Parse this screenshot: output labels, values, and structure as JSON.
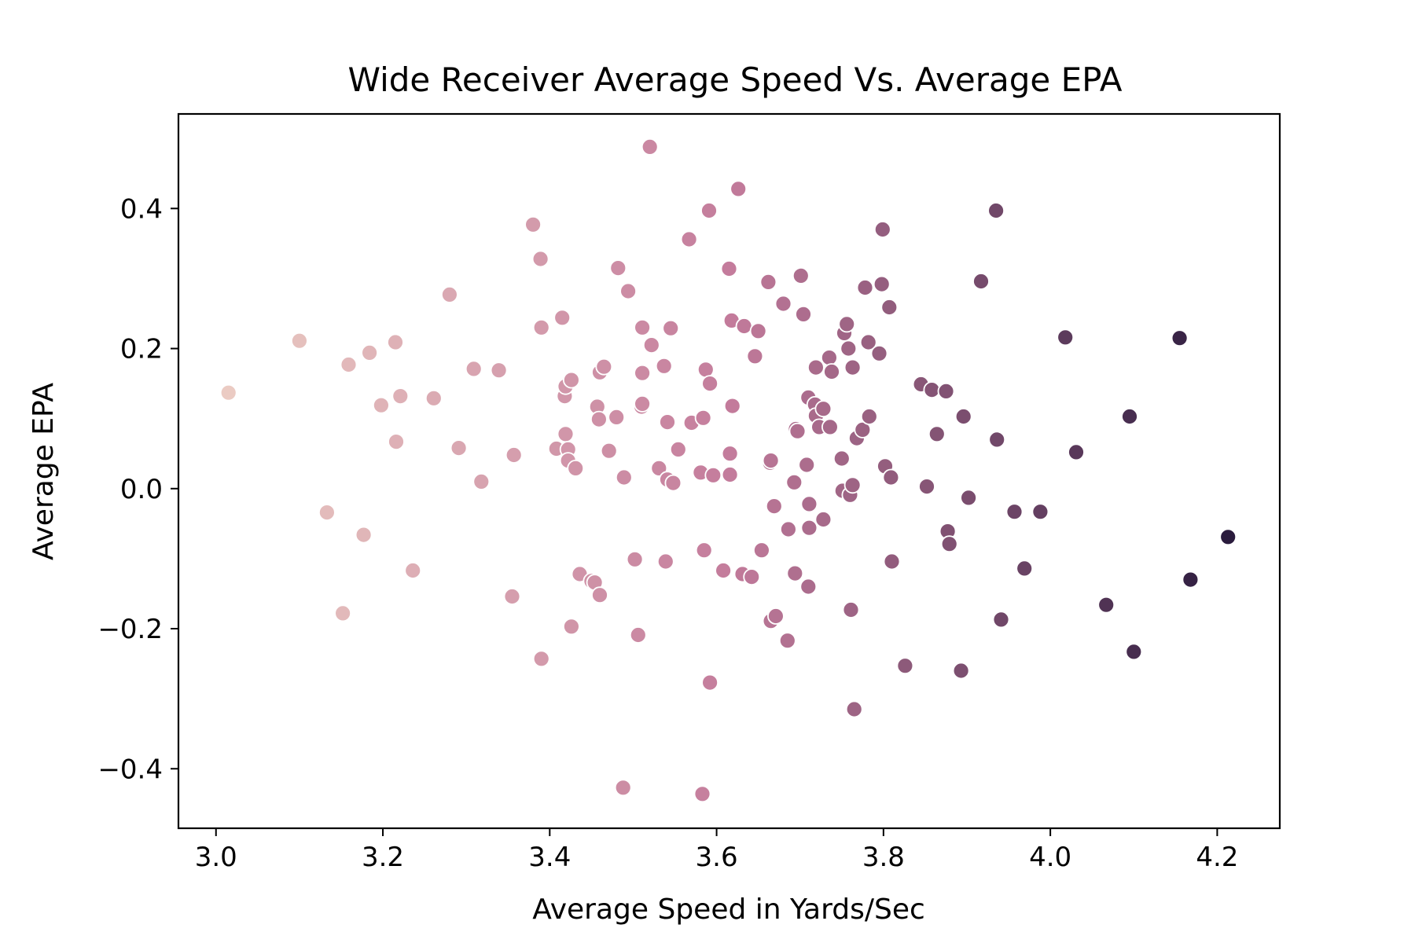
{
  "chart_data": {
    "type": "scatter",
    "title": "Wide Receiver Average Speed Vs. Average EPA",
    "xlabel": "Average Speed in Yards/Sec",
    "ylabel": "Average EPA",
    "xlim": [
      2.955,
      4.275
    ],
    "ylim": [
      -0.485,
      0.535
    ],
    "xticks": [
      3.0,
      3.2,
      3.4,
      3.6,
      3.8,
      4.0,
      4.2
    ],
    "xtick_labels": [
      "3.0",
      "3.2",
      "3.4",
      "3.6",
      "3.8",
      "4.0",
      "4.2"
    ],
    "yticks": [
      -0.4,
      -0.2,
      0.0,
      0.2,
      0.4
    ],
    "ytick_labels": [
      "−0.4",
      "−0.2",
      "0.0",
      "0.2",
      "0.4"
    ],
    "grid": false,
    "legend": "none",
    "hue": "x",
    "color_scale": [
      "#ebcbc3",
      "#2a1b3d"
    ],
    "points": [
      [
        3.015,
        0.137
      ],
      [
        3.1,
        0.211
      ],
      [
        3.133,
        -0.034
      ],
      [
        3.152,
        -0.178
      ],
      [
        3.159,
        0.177
      ],
      [
        3.177,
        -0.066
      ],
      [
        3.184,
        0.194
      ],
      [
        3.198,
        0.119
      ],
      [
        3.215,
        0.209
      ],
      [
        3.216,
        0.067
      ],
      [
        3.221,
        0.132
      ],
      [
        3.236,
        -0.117
      ],
      [
        3.261,
        0.129
      ],
      [
        3.28,
        0.277
      ],
      [
        3.291,
        0.058
      ],
      [
        3.309,
        0.171
      ],
      [
        3.318,
        0.01
      ],
      [
        3.339,
        0.169
      ],
      [
        3.355,
        -0.154
      ],
      [
        3.357,
        0.048
      ],
      [
        3.38,
        0.377
      ],
      [
        3.389,
        0.328
      ],
      [
        3.39,
        0.23
      ],
      [
        3.39,
        -0.243
      ],
      [
        3.408,
        0.057
      ],
      [
        3.415,
        0.244
      ],
      [
        3.418,
        0.132
      ],
      [
        3.419,
        0.146
      ],
      [
        3.419,
        0.078
      ],
      [
        3.422,
        0.056
      ],
      [
        3.422,
        0.04
      ],
      [
        3.426,
        0.155
      ],
      [
        3.426,
        -0.197
      ],
      [
        3.431,
        0.029
      ],
      [
        3.436,
        -0.122
      ],
      [
        3.45,
        -0.132
      ],
      [
        3.454,
        -0.134
      ],
      [
        3.457,
        0.117
      ],
      [
        3.459,
        0.099
      ],
      [
        3.46,
        0.166
      ],
      [
        3.46,
        -0.152
      ],
      [
        3.465,
        0.174
      ],
      [
        3.471,
        0.054
      ],
      [
        3.48,
        0.102
      ],
      [
        3.482,
        0.315
      ],
      [
        3.488,
        -0.427
      ],
      [
        3.489,
        0.016
      ],
      [
        3.494,
        0.282
      ],
      [
        3.502,
        -0.101
      ],
      [
        3.506,
        -0.209
      ],
      [
        3.51,
        0.117
      ],
      [
        3.511,
        0.23
      ],
      [
        3.511,
        0.165
      ],
      [
        3.511,
        0.121
      ],
      [
        3.52,
        0.488
      ],
      [
        3.522,
        0.205
      ],
      [
        3.531,
        0.029
      ],
      [
        3.537,
        0.175
      ],
      [
        3.539,
        -0.104
      ],
      [
        3.541,
        0.095
      ],
      [
        3.541,
        0.013
      ],
      [
        3.545,
        0.229
      ],
      [
        3.548,
        0.008
      ],
      [
        3.554,
        0.056
      ],
      [
        3.567,
        0.356
      ],
      [
        3.57,
        0.094
      ],
      [
        3.581,
        0.023
      ],
      [
        3.584,
        0.101
      ],
      [
        3.585,
        -0.088
      ],
      [
        3.587,
        0.17
      ],
      [
        3.583,
        -0.436
      ],
      [
        3.591,
        0.397
      ],
      [
        3.592,
        0.15
      ],
      [
        3.592,
        -0.277
      ],
      [
        3.596,
        0.019
      ],
      [
        3.608,
        -0.117
      ],
      [
        3.615,
        0.314
      ],
      [
        3.616,
        0.05
      ],
      [
        3.616,
        0.02
      ],
      [
        3.618,
        0.24
      ],
      [
        3.619,
        0.118
      ],
      [
        3.626,
        0.428
      ],
      [
        3.631,
        -0.122
      ],
      [
        3.633,
        0.232
      ],
      [
        3.642,
        -0.126
      ],
      [
        3.646,
        0.189
      ],
      [
        3.65,
        0.225
      ],
      [
        3.654,
        -0.088
      ],
      [
        3.662,
        0.295
      ],
      [
        3.664,
        0.037
      ],
      [
        3.665,
        0.04
      ],
      [
        3.665,
        -0.189
      ],
      [
        3.669,
        -0.025
      ],
      [
        3.671,
        -0.182
      ],
      [
        3.68,
        0.264
      ],
      [
        3.685,
        -0.217
      ],
      [
        3.686,
        -0.058
      ],
      [
        3.693,
        0.009
      ],
      [
        3.694,
        -0.121
      ],
      [
        3.695,
        0.085
      ],
      [
        3.697,
        0.082
      ],
      [
        3.701,
        0.304
      ],
      [
        3.704,
        0.249
      ],
      [
        3.708,
        0.034
      ],
      [
        3.71,
        -0.14
      ],
      [
        3.71,
        0.13
      ],
      [
        3.711,
        -0.022
      ],
      [
        3.711,
        -0.056
      ],
      [
        3.718,
        0.12
      ],
      [
        3.719,
        0.104
      ],
      [
        3.719,
        0.173
      ],
      [
        3.723,
        0.088
      ],
      [
        3.728,
        -0.044
      ],
      [
        3.728,
        0.114
      ],
      [
        3.735,
        0.187
      ],
      [
        3.736,
        0.088
      ],
      [
        3.738,
        0.167
      ],
      [
        3.75,
        0.043
      ],
      [
        3.751,
        -0.003
      ],
      [
        3.753,
        0.222
      ],
      [
        3.756,
        0.235
      ],
      [
        3.758,
        0.2
      ],
      [
        3.76,
        -0.009
      ],
      [
        3.761,
        -0.173
      ],
      [
        3.763,
        0.005
      ],
      [
        3.763,
        0.173
      ],
      [
        3.765,
        -0.315
      ],
      [
        3.768,
        0.072
      ],
      [
        3.775,
        0.084
      ],
      [
        3.778,
        0.287
      ],
      [
        3.782,
        0.209
      ],
      [
        3.783,
        0.103
      ],
      [
        3.795,
        0.193
      ],
      [
        3.798,
        0.292
      ],
      [
        3.799,
        0.37
      ],
      [
        3.802,
        0.032
      ],
      [
        3.807,
        0.259
      ],
      [
        3.809,
        0.016
      ],
      [
        3.81,
        -0.104
      ],
      [
        3.826,
        -0.253
      ],
      [
        3.845,
        0.149
      ],
      [
        3.852,
        0.003
      ],
      [
        3.858,
        0.141
      ],
      [
        3.864,
        0.078
      ],
      [
        3.875,
        0.139
      ],
      [
        3.877,
        -0.061
      ],
      [
        3.879,
        -0.079
      ],
      [
        3.893,
        -0.26
      ],
      [
        3.896,
        0.103
      ],
      [
        3.902,
        -0.013
      ],
      [
        3.917,
        0.296
      ],
      [
        3.935,
        0.397
      ],
      [
        3.936,
        0.07
      ],
      [
        3.941,
        -0.187
      ],
      [
        3.957,
        -0.033
      ],
      [
        3.969,
        -0.114
      ],
      [
        3.988,
        -0.033
      ],
      [
        4.018,
        0.216
      ],
      [
        4.031,
        0.052
      ],
      [
        4.067,
        -0.166
      ],
      [
        4.095,
        0.103
      ],
      [
        4.1,
        -0.233
      ],
      [
        4.155,
        0.215
      ],
      [
        4.168,
        -0.13
      ],
      [
        4.213,
        -0.069
      ]
    ]
  }
}
